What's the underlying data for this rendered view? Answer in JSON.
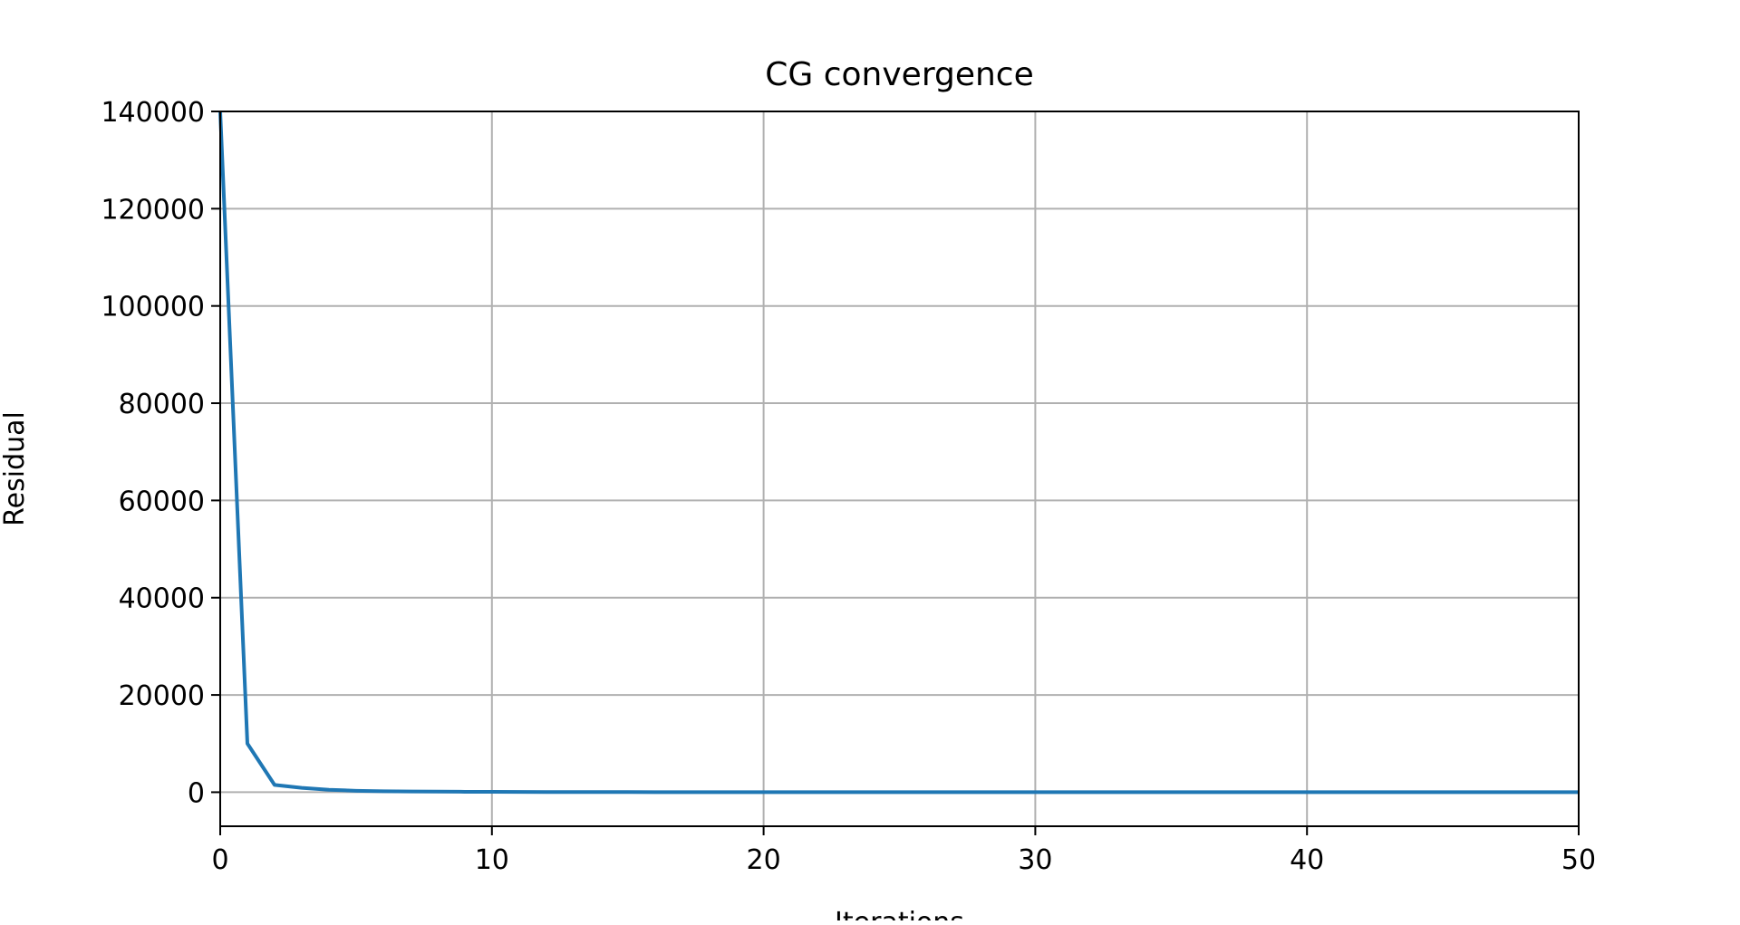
{
  "chart_data": {
    "type": "line",
    "title": "CG convergence",
    "xlabel": "Iterations",
    "ylabel": "Residual",
    "xlim": [
      0,
      50
    ],
    "ylim": [
      -7000,
      140000
    ],
    "x_ticks": [
      0,
      10,
      20,
      30,
      40,
      50
    ],
    "y_ticks": [
      0,
      20000,
      40000,
      60000,
      80000,
      100000,
      120000,
      140000
    ],
    "grid": true,
    "legend": "none",
    "line_color": "#1f77b4",
    "series": [
      {
        "x": [
          0,
          1,
          2,
          3,
          4,
          5,
          6,
          7,
          8,
          9,
          10,
          11,
          12,
          13,
          14,
          15,
          16,
          17,
          18,
          19,
          20,
          21,
          22,
          23,
          24,
          25,
          26,
          27,
          28,
          29,
          30,
          31,
          32,
          33,
          34,
          35,
          36,
          37,
          38,
          39,
          40,
          41,
          42,
          43,
          44,
          45,
          46,
          47,
          48,
          49,
          50
        ],
        "values": [
          140000,
          10000,
          1500,
          900,
          500,
          300,
          200,
          150,
          120,
          90,
          70,
          55,
          45,
          35,
          28,
          22,
          18,
          14,
          11,
          9,
          7,
          6,
          5,
          4,
          3,
          2.5,
          2,
          1.6,
          1.3,
          1,
          0.8,
          0.6,
          0.5,
          0.4,
          0.3,
          0.25,
          0.2,
          0.15,
          0.12,
          0.1,
          0.08,
          0.06,
          0.05,
          0.04,
          0.03,
          0.02,
          0.02,
          0.01,
          0.01,
          0.01,
          0.01
        ]
      }
    ]
  }
}
